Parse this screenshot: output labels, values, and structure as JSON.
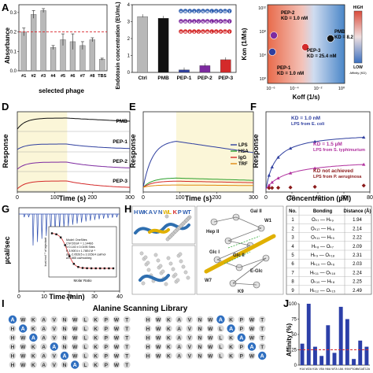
{
  "panels": {
    "A": {
      "ylabel": "Absorbance",
      "xlabel": "selected phage",
      "chart_data": {
        "type": "bar",
        "categories": [
          "#1",
          "#2",
          "#3",
          "#4",
          "#5",
          "#6",
          "#7",
          "#8",
          "TBS"
        ],
        "values": [
          0.2,
          0.29,
          0.31,
          0.12,
          0.16,
          0.15,
          0.13,
          0.16,
          0.06
        ],
        "errors": [
          0.02,
          0.02,
          0.01,
          0.01,
          0.03,
          0.04,
          0.02,
          0.01,
          0.005
        ],
        "yticks": [
          "0.0",
          "0.1",
          "0.2",
          "0.3"
        ],
        "ylim": [
          0,
          0.34
        ],
        "threshold": 0.2,
        "colors": {
          "bar": "#b8b8b8",
          "threshold": "#d9262c"
        }
      }
    },
    "B": {
      "ylabel": "Endotoxin concentration (EU/mL)",
      "chart_data": {
        "type": "bar",
        "categories": [
          "Ctrl",
          "PMB",
          "PEP-1",
          "PEP-2",
          "PEP-3"
        ],
        "values": [
          3.3,
          3.2,
          0.15,
          0.4,
          0.75
        ],
        "yticks": [
          "0",
          "1",
          "2",
          "3",
          "4"
        ],
        "ylim": [
          0,
          4
        ],
        "colors": [
          "#b8b8b8",
          "#111111",
          "#2f3f9f",
          "#7d2aa0",
          "#d42a2a"
        ]
      },
      "sequences": [
        {
          "text": "HWKAVNWLKPWT",
          "color": "#2f5fb0"
        },
        {
          "text": "HWKAVNWLKPWT",
          "color": "#7d2aa0"
        },
        {
          "text": "HWKAVNWLKPWT",
          "color": "#d42a2a"
        }
      ]
    },
    "C": {
      "ylabel": "Kon (1/Ms)",
      "xlabel": "Koff (1/s)",
      "ytick_labels": [
        "10¹²",
        "10⁸",
        "10⁴",
        "10⁰"
      ],
      "xtick_labels": [
        "10⁻⁶",
        "10⁻⁴",
        "10⁻²",
        "10⁰"
      ],
      "points": [
        {
          "name": "PEP-2",
          "kd": "KD = 1.0 nM",
          "color": "#7d2aa0"
        },
        {
          "name": "PEP-1",
          "kd": "KD = 1.0 nM",
          "color": "#2f3f9f"
        },
        {
          "name": "PEP-3",
          "kd": "KD = 25.4 nM",
          "color": "#d42a2a"
        },
        {
          "name": "PMB",
          "kd": "KD = 8.2 µM",
          "color": "#111111"
        }
      ],
      "legend": {
        "high": "HIGH",
        "low": "LOW",
        "caption": "Affinity (KD)"
      }
    },
    "D": {
      "ylabel": "Response",
      "xlabel": "Time (s)",
      "xticks": [
        "0",
        "100",
        "200",
        "300"
      ],
      "traces": [
        {
          "name": "PMB",
          "color": "#111111"
        },
        {
          "name": "PEP-1",
          "color": "#2f3f9f"
        },
        {
          "name": "PEP-2",
          "color": "#7d2aa0"
        },
        {
          "name": "PEP-3",
          "color": "#d42a2a"
        }
      ]
    },
    "E": {
      "ylabel": "Response",
      "xlabel": "Time (s)",
      "xticks": [
        "0",
        "100",
        "200",
        "300"
      ],
      "traces": [
        {
          "name": "LPS",
          "color": "#2f3f9f"
        },
        {
          "name": "HSA",
          "color": "#2ca02c"
        },
        {
          "name": "IgG",
          "color": "#d42a2a"
        },
        {
          "name": "TRF",
          "color": "#e08a10"
        }
      ]
    },
    "F": {
      "ylabel": "Response",
      "xlabel": "Concentration (µM)",
      "xticks": [
        "0",
        "20",
        "40",
        "60",
        "80"
      ],
      "series": [
        {
          "kd": "KD = 1.0 nM",
          "label": "LPS from E. coli",
          "color": "#2f3f9f"
        },
        {
          "kd": "KD = 1.5 µM",
          "label": "LPS from S. typhimurium",
          "color": "#b0309e"
        },
        {
          "kd": "KD not achieved",
          "label": "LPS from P. aeruginosa",
          "color": "#8b1a1a"
        }
      ]
    },
    "G": {
      "ylabel": "µcal/sec",
      "xlabel": "Time (min)",
      "xticks": [
        "0",
        "10",
        "20",
        "30",
        "40"
      ],
      "inset": {
        "ylabel": "kcal mol⁻¹ of injectant",
        "xlabel": "Molar Ratio",
        "lines": [
          "Model: OneSites",
          "Chi^2/DoF = 1.144E6",
          "N    0.140 ± 0.0195 Sites",
          "K    3.90E4 ± 1.78E4 M⁻¹",
          "ΔH  -2.052E5 ± 3.315E4 cal/mol",
          "ΔS  -665 cal/mol/deg"
        ]
      }
    },
    "H": {
      "sequence_letters": [
        {
          "c": "H",
          "color": "#2f5fb0"
        },
        {
          "c": "W",
          "color": "#2f5fb0"
        },
        {
          "c": "K",
          "color": "#2f5fb0"
        },
        {
          "c": "A",
          "color": "#2f5fb0"
        },
        {
          "c": "V",
          "color": "#2f5fb0"
        },
        {
          "c": "N",
          "color": "#2f5fb0"
        },
        {
          "c": "W",
          "color": "#e0b000"
        },
        {
          "c": "L",
          "color": "#e0b000"
        },
        {
          "c": "K",
          "color": "#d42a2a"
        },
        {
          "c": "P",
          "color": "#2f5fb0"
        },
        {
          "c": "W",
          "color": "#2f5fb0"
        },
        {
          "c": "T",
          "color": "#2f5fb0"
        }
      ],
      "residue_labels": [
        "Hep II",
        "Gal II",
        "Glc I",
        "Glc II",
        "E-Glc",
        "W7",
        "K9",
        "W1"
      ],
      "table": {
        "headers": [
          "No.",
          "Bonding",
          "Distance (Å)"
        ],
        "rows": [
          [
            "1",
            "Oₖ₇ — Hₖ₉",
            "1.94"
          ],
          [
            "2",
            "Oₖ₁₇ — Hₖ₈",
            "2.14"
          ],
          [
            "3",
            "Oₖ₁₁ — Hₖ₉",
            "2.22"
          ],
          [
            "4",
            "Hₖ₈ — Oₖ₇",
            "2.09"
          ],
          [
            "5",
            "Hₖ₉ — Oₖ₁₈",
            "2.31"
          ],
          [
            "6",
            "Hₖ₁₀ — Oₖ₆",
            "2.03"
          ],
          [
            "7",
            "Hₖ₁₁ — Oₖ₁₈",
            "2.24"
          ],
          [
            "8",
            "Oₖ₁₀ — Hₖ₈",
            "2.25"
          ],
          [
            "9",
            "Hₖ₁₂ — Oₖ₁₅",
            "2.49"
          ]
        ]
      }
    },
    "I": {
      "title": "Alanine Scanning Library",
      "rows": [
        [
          "A",
          "W",
          "K",
          "A",
          "V",
          "N",
          "W",
          "L",
          "K",
          "P",
          "W",
          "T"
        ],
        [
          "H",
          "A",
          "K",
          "A",
          "V",
          "N",
          "W",
          "L",
          "K",
          "P",
          "W",
          "T"
        ],
        [
          "H",
          "W",
          "A",
          "A",
          "V",
          "N",
          "W",
          "L",
          "K",
          "P",
          "W",
          "T"
        ],
        [
          "H",
          "W",
          "K",
          "A",
          "A",
          "N",
          "W",
          "L",
          "K",
          "P",
          "W",
          "T"
        ],
        [
          "H",
          "W",
          "K",
          "A",
          "V",
          "A",
          "W",
          "L",
          "K",
          "P",
          "W",
          "T"
        ],
        [
          "H",
          "W",
          "K",
          "A",
          "V",
          "N",
          "A",
          "L",
          "K",
          "P",
          "W",
          "T"
        ],
        [
          "H",
          "W",
          "K",
          "A",
          "V",
          "N",
          "W",
          "A",
          "K",
          "P",
          "W",
          "T"
        ],
        [
          "H",
          "W",
          "K",
          "A",
          "V",
          "N",
          "W",
          "L",
          "A",
          "P",
          "W",
          "T"
        ],
        [
          "H",
          "W",
          "K",
          "A",
          "V",
          "N",
          "W",
          "L",
          "K",
          "A",
          "W",
          "T"
        ],
        [
          "H",
          "W",
          "K",
          "A",
          "V",
          "N",
          "W",
          "L",
          "K",
          "P",
          "A",
          "T"
        ],
        [
          "H",
          "W",
          "K",
          "A",
          "V",
          "N",
          "W",
          "L",
          "K",
          "P",
          "W",
          "A"
        ]
      ],
      "colors": {
        "sub": "#2f6fc0",
        "normal": "#d8d8d8",
        "letter": "#333333"
      }
    },
    "J": {
      "ylabel": "Affinity (%)",
      "chart_data": {
        "type": "bar",
        "categories": [
          "H1A",
          "W2A",
          "K3A",
          "V5A",
          "N6A",
          "W7A",
          "L8A",
          "K9A",
          "P10A",
          "W11A",
          "T12A"
        ],
        "values": [
          35,
          100,
          30,
          15,
          65,
          20,
          95,
          75,
          10,
          40,
          30
        ],
        "yticks": [
          "0",
          "25",
          "50",
          "75",
          "100"
        ],
        "ylim": [
          0,
          100
        ],
        "threshold": 25,
        "colors": {
          "bar": "#2c3fa8",
          "threshold": "#d9262c"
        }
      }
    }
  }
}
